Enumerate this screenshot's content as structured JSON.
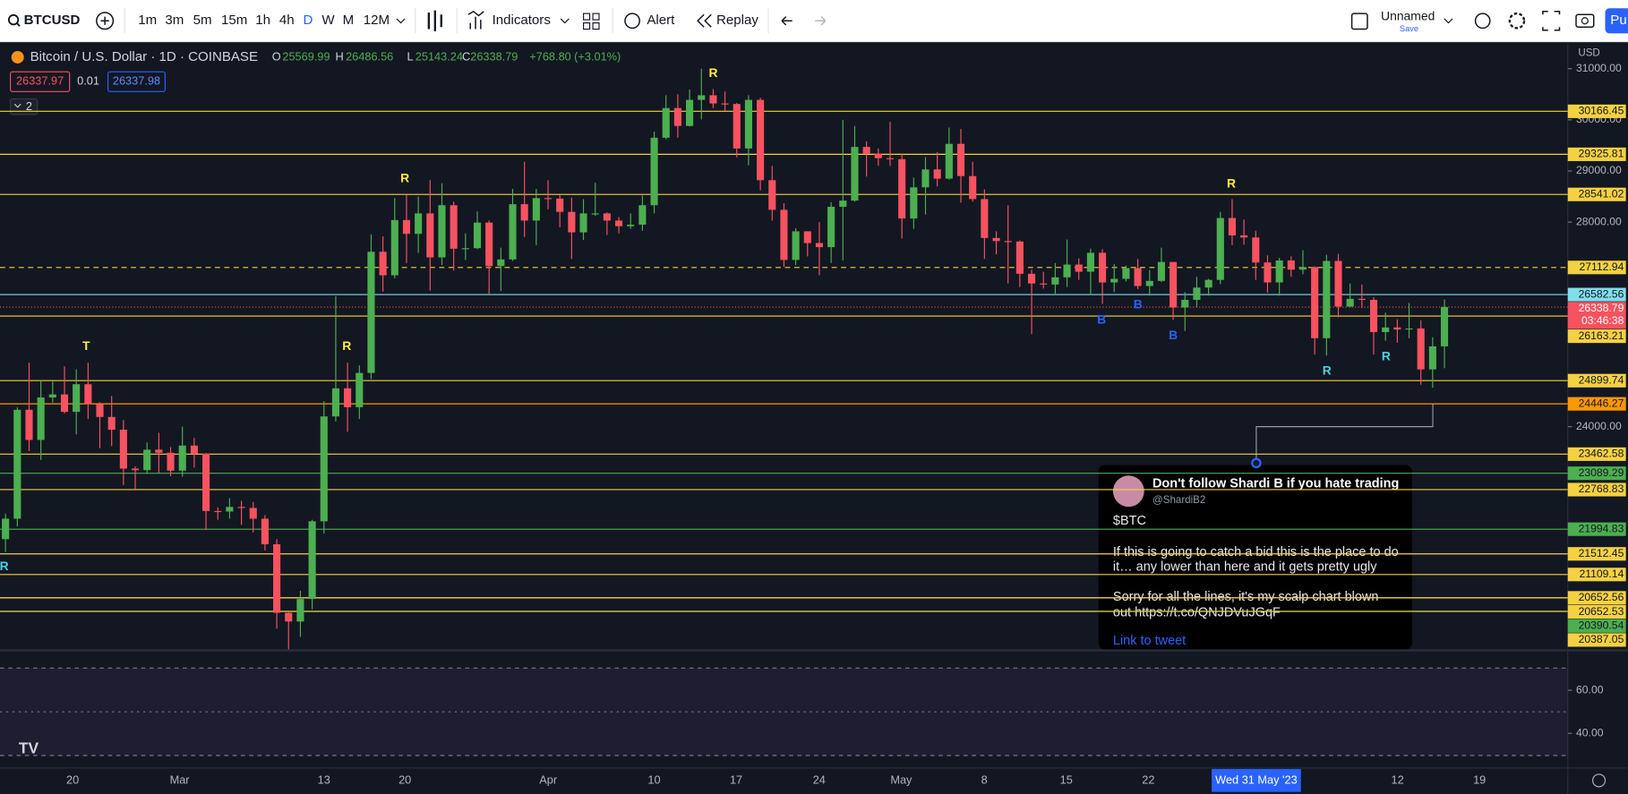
{
  "toolbar": {
    "symbol": "BTCUSD",
    "intervals": [
      "1m",
      "3m",
      "5m",
      "15m",
      "1h",
      "4h",
      "D",
      "W",
      "M",
      "12M"
    ],
    "indicators": "Indicators",
    "alert": "Alert",
    "replay": "Replay",
    "layout_name": "Unnamed",
    "save": "Save",
    "publish": "Pu"
  },
  "legend": {
    "title": "Bitcoin / U.S. Dollar · 1D · COINBASE",
    "o_label": "O",
    "open": 25569.99,
    "h_label": "H",
    "high": 26486.56,
    "l_label": "L",
    "low": 25143.24,
    "c_label": "C",
    "close": 26338.79,
    "change": "+768.80",
    "change_pct": "(+3.01%)",
    "bid": 26337.97,
    "spread": 0.01,
    "ask": 26337.98,
    "indicators_count": 2
  },
  "price_axis": {
    "currency": "USD",
    "ticks": [
      {
        "value": 31000,
        "label": "31000.00"
      },
      {
        "value": 30000,
        "label": "30000.00"
      },
      {
        "value": 29000,
        "label": "29000.00"
      },
      {
        "value": 28000,
        "label": "28000.00"
      },
      {
        "value": 24000,
        "label": "24000.00"
      }
    ]
  },
  "levels": [
    {
      "price": 30166.45,
      "color": "#f5d142"
    },
    {
      "price": 29325.81,
      "color": "#f5d142"
    },
    {
      "price": 28541.02,
      "color": "#f5d142"
    },
    {
      "price": 27112.94,
      "color": "#f5d142",
      "dashed": true
    },
    {
      "price": 26582.56,
      "color": "#80deea"
    },
    {
      "price": 26163.21,
      "color": "#f5d142"
    },
    {
      "price": 24899.74,
      "color": "#f5d142"
    },
    {
      "price": 24446.27,
      "color": "#ff9800"
    },
    {
      "price": 23462.58,
      "color": "#f5d142"
    },
    {
      "price": 23089.29,
      "color": "#4caf50"
    },
    {
      "price": 22768.83,
      "color": "#f5d142"
    },
    {
      "price": 21994.83,
      "color": "#4caf50"
    },
    {
      "price": 21512.45,
      "color": "#f5d142"
    },
    {
      "price": 21109.14,
      "color": "#f5d142"
    },
    {
      "price": 20652.56,
      "color": "#f5d142"
    },
    {
      "price": 20652.53,
      "color": "#f5d142"
    },
    {
      "price": 20390.54,
      "color": "#4caf50"
    },
    {
      "price": 20387.05,
      "color": "#f5d142"
    }
  ],
  "current_price": {
    "price": 26338.79,
    "countdown": "03:46:38"
  },
  "candles": [
    [
      21800,
      22300,
      21550,
      22200
    ],
    [
      22200,
      24380,
      22050,
      24330
    ],
    [
      24330,
      25250,
      23520,
      23740
    ],
    [
      23740,
      24900,
      23350,
      24570
    ],
    [
      24570,
      24880,
      24470,
      24630
    ],
    [
      24630,
      25180,
      24260,
      24290
    ],
    [
      24290,
      25120,
      23850,
      24830
    ],
    [
      24830,
      25250,
      24150,
      24440
    ],
    [
      24440,
      24480,
      23580,
      24190
    ],
    [
      24190,
      24600,
      23620,
      23940
    ],
    [
      23940,
      24130,
      22860,
      23180
    ],
    [
      23180,
      23220,
      22750,
      23150
    ],
    [
      23150,
      23690,
      23080,
      23550
    ],
    [
      23550,
      23880,
      23100,
      23490
    ],
    [
      23490,
      23600,
      23030,
      23140
    ],
    [
      23140,
      24000,
      23020,
      23630
    ],
    [
      23630,
      23780,
      23200,
      23470
    ],
    [
      23470,
      23480,
      21980,
      22350
    ],
    [
      22350,
      22420,
      22180,
      22340
    ],
    [
      22340,
      22600,
      22200,
      22430
    ],
    [
      22430,
      22550,
      22080,
      22410
    ],
    [
      22410,
      22530,
      21930,
      22200
    ],
    [
      22200,
      22270,
      21580,
      21700
    ],
    [
      21700,
      21800,
      20050,
      20360
    ],
    [
      20360,
      20370,
      19570,
      20190
    ],
    [
      20190,
      20790,
      19890,
      20630
    ],
    [
      20630,
      22180,
      20430,
      22150
    ],
    [
      22150,
      24500,
      21910,
      24200
    ],
    [
      24200,
      26550,
      24100,
      24750
    ],
    [
      24750,
      25250,
      23900,
      24380
    ],
    [
      24380,
      25200,
      24150,
      25050
    ],
    [
      25050,
      27760,
      24930,
      27420
    ],
    [
      27420,
      27720,
      26640,
      26960
    ],
    [
      26960,
      28470,
      26900,
      28040
    ],
    [
      28040,
      28530,
      27200,
      27770
    ],
    [
      27770,
      28500,
      27400,
      28170
    ],
    [
      28170,
      28820,
      26660,
      27310
    ],
    [
      27310,
      28760,
      27160,
      28330
    ],
    [
      28330,
      28400,
      27050,
      27480
    ],
    [
      27480,
      27780,
      27260,
      27490
    ],
    [
      27490,
      28210,
      27470,
      27990
    ],
    [
      27990,
      28030,
      26600,
      27140
    ],
    [
      27140,
      27500,
      26650,
      27270
    ],
    [
      27270,
      28650,
      27240,
      28350
    ],
    [
      28350,
      29180,
      27710,
      28030
    ],
    [
      28030,
      28650,
      27550,
      28470
    ],
    [
      28470,
      28820,
      28250,
      28460
    ],
    [
      28460,
      28530,
      27900,
      28200
    ],
    [
      28200,
      28480,
      27280,
      27800
    ],
    [
      27800,
      28450,
      27650,
      28170
    ],
    [
      28170,
      28770,
      28120,
      28170
    ],
    [
      28170,
      28190,
      27750,
      28030
    ],
    [
      28030,
      28100,
      27780,
      27920
    ],
    [
      27920,
      28170,
      27870,
      27950
    ],
    [
      27950,
      28520,
      27830,
      28330
    ],
    [
      28330,
      29770,
      28170,
      29650
    ],
    [
      29650,
      30480,
      29620,
      30230
    ],
    [
      30230,
      30500,
      29650,
      29880
    ],
    [
      29880,
      30590,
      29870,
      30390
    ],
    [
      30390,
      31000,
      30010,
      30480
    ],
    [
      30480,
      30600,
      30230,
      30320
    ],
    [
      30320,
      30550,
      30170,
      30310
    ],
    [
      30310,
      30330,
      29270,
      29440
    ],
    [
      29440,
      30480,
      29110,
      30390
    ],
    [
      30390,
      30430,
      28620,
      28820
    ],
    [
      28820,
      29100,
      28030,
      28240
    ],
    [
      28240,
      28370,
      27130,
      27260
    ],
    [
      27260,
      27880,
      27160,
      27820
    ],
    [
      27820,
      27820,
      27330,
      27590
    ],
    [
      27590,
      28000,
      26960,
      27510
    ],
    [
      27510,
      28390,
      27200,
      28300
    ],
    [
      28300,
      30000,
      27250,
      28420
    ],
    [
      28420,
      29880,
      28400,
      29470
    ],
    [
      29470,
      29580,
      28890,
      29340
    ],
    [
      29340,
      29440,
      29100,
      29250
    ],
    [
      29250,
      29960,
      29100,
      29230
    ],
    [
      29230,
      29330,
      27680,
      28070
    ],
    [
      28070,
      28870,
      27870,
      28680
    ],
    [
      28680,
      29270,
      28150,
      29030
    ],
    [
      29030,
      29370,
      28700,
      28850
    ],
    [
      28850,
      29850,
      28830,
      29530
    ],
    [
      29530,
      29820,
      28380,
      28900
    ],
    [
      28900,
      29180,
      28400,
      28450
    ],
    [
      28450,
      28640,
      27280,
      27690
    ],
    [
      27690,
      27820,
      27370,
      27630
    ],
    [
      27630,
      28330,
      26800,
      27620
    ],
    [
      27620,
      27640,
      26730,
      26990
    ],
    [
      26990,
      27070,
      25810,
      26800
    ],
    [
      26800,
      27030,
      26700,
      26780
    ],
    [
      26780,
      27200,
      26600,
      26920
    ],
    [
      26920,
      27660,
      26730,
      27170
    ],
    [
      27170,
      27290,
      26870,
      27030
    ],
    [
      27030,
      27480,
      26570,
      27400
    ],
    [
      27400,
      27470,
      26400,
      26820
    ],
    [
      26820,
      27180,
      26630,
      26890
    ],
    [
      26890,
      27150,
      26840,
      27100
    ],
    [
      27100,
      27280,
      26690,
      26750
    ],
    [
      26750,
      27060,
      26560,
      26850
    ],
    [
      26850,
      27500,
      26830,
      27220
    ],
    [
      27220,
      27220,
      26090,
      26330
    ],
    [
      26330,
      26630,
      25870,
      26480
    ],
    [
      26480,
      26930,
      26330,
      26720
    ],
    [
      26720,
      26890,
      26560,
      26870
    ],
    [
      26870,
      28200,
      26790,
      28080
    ],
    [
      28080,
      28450,
      27550,
      27740
    ],
    [
      27740,
      28050,
      27560,
      27700
    ],
    [
      27700,
      27830,
      26870,
      27210
    ],
    [
      27210,
      27350,
      26620,
      26820
    ],
    [
      26820,
      27300,
      26560,
      27250
    ],
    [
      27250,
      27330,
      26930,
      27070
    ],
    [
      27070,
      27450,
      26980,
      27120
    ],
    [
      27120,
      27140,
      25410,
      25730
    ],
    [
      25730,
      27360,
      25390,
      27240
    ],
    [
      27240,
      27380,
      26140,
      26350
    ],
    [
      26350,
      26800,
      26340,
      26500
    ],
    [
      26500,
      26780,
      26320,
      26480
    ],
    [
      26480,
      26530,
      25410,
      25850
    ],
    [
      25850,
      26230,
      25680,
      25940
    ],
    [
      25940,
      26100,
      25640,
      25900
    ],
    [
      25900,
      26420,
      25730,
      25920
    ],
    [
      25920,
      26080,
      24820,
      25120
    ],
    [
      25120,
      25750,
      24760,
      25570
    ],
    [
      25569.99,
      26486.56,
      25143.24,
      26338.79
    ]
  ],
  "markers": [
    "T",
    "R",
    "R",
    "R",
    "B",
    "B",
    "B",
    "R",
    "R",
    "R",
    "R"
  ],
  "rsi_axis": {
    "ticks": [
      {
        "value": 60,
        "label": "60.00"
      },
      {
        "value": 40,
        "label": "40.00"
      }
    ]
  },
  "time_axis": {
    "labels": [
      "20",
      "Mar",
      "13",
      "20",
      "Apr",
      "10",
      "17",
      "24",
      "May",
      "8",
      "15",
      "22",
      "12",
      "19"
    ],
    "crosshair": "Wed 31 May '23"
  },
  "tweet": {
    "author": "Don't follow Shardi B if you hate trading",
    "handle": "@ShardiB2",
    "ticker": "$BTC",
    "lines": [
      "If this is going to catch a bid this is the place to do",
      "it… any lower than here and it gets pretty ugly",
      "Sorry for all the lines, it's my scalp chart blown",
      "out https://t.co/QNJDVuJGqF"
    ],
    "link": "Link to tweet"
  }
}
